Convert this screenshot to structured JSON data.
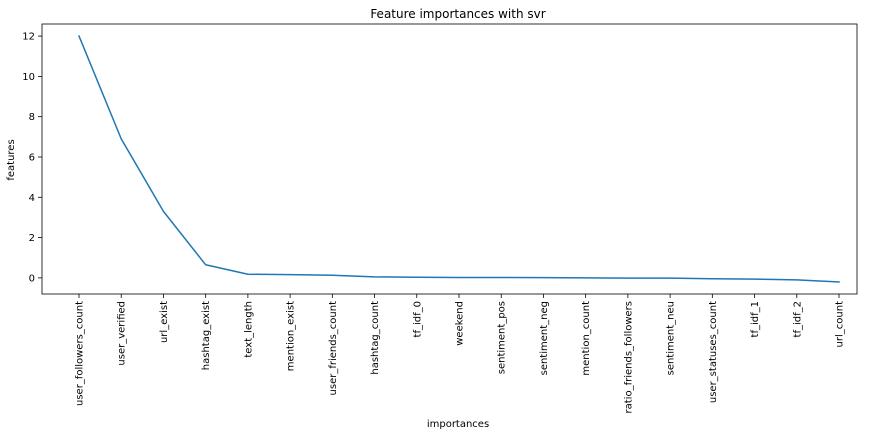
{
  "chart_data": {
    "type": "line",
    "title": "Feature importances with svr",
    "xlabel": "importances",
    "ylabel": "features",
    "categories": [
      "user_followers_count",
      "user_verified",
      "url_exist",
      "hashtag_exist",
      "text_length",
      "mention_exist",
      "user_friends_count",
      "hashtag_count",
      "tf_idf_0",
      "weekend",
      "sentiment_pos",
      "sentiment_neg",
      "mention_count",
      "ratio_friends_followers",
      "sentiment_neu",
      "user_statuses_count",
      "tf_idf_1",
      "tf_idf_2",
      "url_count"
    ],
    "series": [
      {
        "values": [
          12.0,
          6.9,
          3.3,
          0.65,
          0.18,
          0.16,
          0.13,
          0.05,
          0.03,
          0.02,
          0.02,
          0.01,
          0.0,
          -0.01,
          -0.01,
          -0.04,
          -0.06,
          -0.1,
          -0.2
        ]
      }
    ],
    "ylim": [
      -0.8,
      12.6
    ],
    "yticks": [
      0,
      2,
      4,
      6,
      8,
      10,
      12
    ],
    "line_color": "#1f77b4",
    "grid": false,
    "legend": "none"
  }
}
